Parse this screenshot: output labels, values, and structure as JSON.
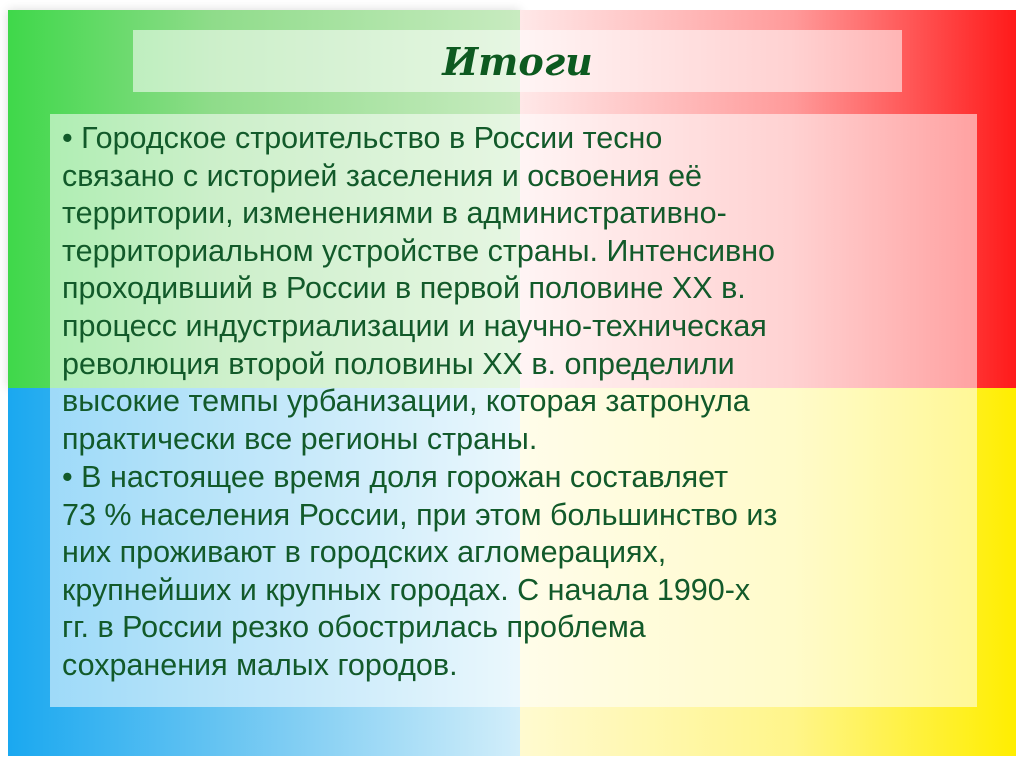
{
  "slide": {
    "title": "Итоги",
    "colors": {
      "green": "#3fd84a",
      "red": "#ff1a1a",
      "blue": "#1aa8f0",
      "yellow": "#ffee00",
      "text": "#125a2a"
    },
    "bullets": [
      {
        "lines": [
          "• Городское строительство в России тесно",
          "связано с историей заселения и освоения её",
          "территории, изменениями в административно-",
          "территориальном устройстве страны. Интенсивно",
          "проходивший в России в первой половине XX в.",
          "процесс индустриализации и научно-техническая",
          "революция второй половины XX в. определили",
          "высокие темпы урбанизации, которая затронула",
          "практически все регионы страны."
        ]
      },
      {
        "lines": [
          "• В настоящее время доля горожан составляет",
          "73 % населения России, при этом большинство из",
          "них проживают в городских агломерациях,",
          "крупнейших и крупных городах. С начала 1990-х",
          "гг. в России резко обострилась проблема",
          "сохранения малых городов."
        ]
      }
    ]
  }
}
